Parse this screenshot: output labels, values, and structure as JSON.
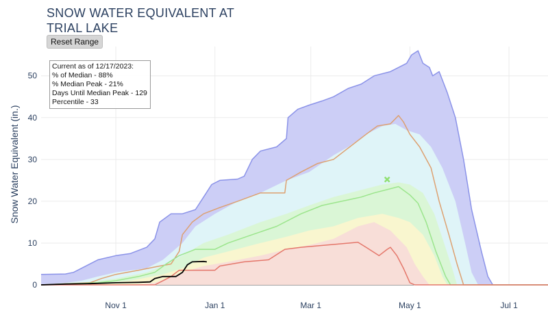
{
  "title_line1": "SNOW WATER EQUIVALENT AT",
  "title_line2": "TRIAL LAKE",
  "reset_button": "Reset Range",
  "info_box": {
    "line1": "Current as of 12/17/2023:",
    "line2": "% of Median - 88%",
    "line3": "% Median Peak - 21%",
    "line4": "Days Until Median Peak - 129",
    "line5": "Percentile - 33"
  },
  "colors": {
    "max_band": "#c9cbf6",
    "max_line": "#8a92e8",
    "p90_band": "#dff6f8",
    "p70_band": "#d9f5d4",
    "p50_band": "#fbf6cf",
    "p30_band": "#f8dcd8",
    "min_line": "#e4766a",
    "p90_line": "#dda070",
    "median_line": "#9be58c",
    "current_line": "#000000",
    "marker": "#8fe071"
  },
  "chart_data": {
    "type": "area",
    "ylabel": "Snow Water Equivalent (in.)",
    "x_units": "days since Oct 1",
    "xlim": [
      -15,
      297
    ],
    "ylim": [
      0,
      57
    ],
    "yticks": [
      0,
      10,
      20,
      30,
      40,
      50
    ],
    "xticks": [
      {
        "day": 31,
        "label": "Nov 1"
      },
      {
        "day": 92,
        "label": "Jan 1"
      },
      {
        "day": 151,
        "label": "Mar 1"
      },
      {
        "day": 212,
        "label": "May 1"
      },
      {
        "day": 273,
        "label": "Jul 1"
      }
    ],
    "grid": true,
    "bands": [
      {
        "key": "max",
        "color": "#c9cbf6",
        "points": [
          [
            -15,
            2.5
          ],
          [
            0,
            2.6
          ],
          [
            5,
            3
          ],
          [
            10,
            4
          ],
          [
            20,
            6
          ],
          [
            31,
            7
          ],
          [
            40,
            7.5
          ],
          [
            50,
            9
          ],
          [
            55,
            11
          ],
          [
            58,
            15
          ],
          [
            65,
            17
          ],
          [
            72,
            17
          ],
          [
            80,
            18
          ],
          [
            85,
            21
          ],
          [
            90,
            24
          ],
          [
            95,
            25
          ],
          [
            106,
            25.3
          ],
          [
            110,
            26
          ],
          [
            115,
            30
          ],
          [
            120,
            32
          ],
          [
            130,
            33
          ],
          [
            136,
            35
          ],
          [
            137,
            40
          ],
          [
            143,
            42
          ],
          [
            150,
            43
          ],
          [
            158,
            44
          ],
          [
            165,
            45
          ],
          [
            174,
            47
          ],
          [
            182,
            48
          ],
          [
            190,
            50
          ],
          [
            200,
            51
          ],
          [
            210,
            53
          ],
          [
            213,
            55
          ],
          [
            217,
            56
          ],
          [
            220,
            53
          ],
          [
            224,
            52
          ],
          [
            226,
            50
          ],
          [
            230,
            51
          ],
          [
            235,
            46
          ],
          [
            240,
            40
          ],
          [
            245,
            30
          ],
          [
            250,
            18
          ],
          [
            256,
            8
          ],
          [
            260,
            2
          ],
          [
            263,
            0
          ],
          [
            297,
            0
          ]
        ]
      },
      {
        "key": "p90",
        "color": "#dff6f8",
        "points": [
          [
            -15,
            0
          ],
          [
            0,
            0.5
          ],
          [
            10,
            1
          ],
          [
            20,
            2
          ],
          [
            31,
            3
          ],
          [
            50,
            4
          ],
          [
            60,
            6
          ],
          [
            72,
            10
          ],
          [
            80,
            14
          ],
          [
            92,
            17
          ],
          [
            106,
            20
          ],
          [
            120,
            22
          ],
          [
            136,
            25
          ],
          [
            150,
            27
          ],
          [
            165,
            31
          ],
          [
            174,
            33
          ],
          [
            185,
            36
          ],
          [
            195,
            38
          ],
          [
            203,
            38.5
          ],
          [
            210,
            37
          ],
          [
            218,
            36
          ],
          [
            225,
            33
          ],
          [
            232,
            28
          ],
          [
            240,
            20
          ],
          [
            246,
            10
          ],
          [
            250,
            3
          ],
          [
            254,
            0
          ],
          [
            297,
            0
          ]
        ]
      },
      {
        "key": "p70",
        "color": "#d9f5d4",
        "points": [
          [
            -15,
            0
          ],
          [
            10,
            0.5
          ],
          [
            31,
            1.5
          ],
          [
            50,
            3
          ],
          [
            60,
            4.5
          ],
          [
            72,
            7
          ],
          [
            85,
            10
          ],
          [
            100,
            12
          ],
          [
            120,
            15
          ],
          [
            136,
            17
          ],
          [
            150,
            19
          ],
          [
            165,
            21
          ],
          [
            180,
            22.5
          ],
          [
            195,
            24
          ],
          [
            205,
            24.5
          ],
          [
            212,
            24
          ],
          [
            220,
            22
          ],
          [
            227,
            17
          ],
          [
            233,
            10
          ],
          [
            238,
            4
          ],
          [
            241,
            0
          ],
          [
            297,
            0
          ]
        ]
      },
      {
        "key": "p50",
        "color": "#fbf6cf",
        "points": [
          [
            -15,
            0
          ],
          [
            20,
            0.3
          ],
          [
            40,
            1
          ],
          [
            60,
            2.5
          ],
          [
            72,
            4
          ],
          [
            85,
            6.5
          ],
          [
            100,
            8
          ],
          [
            120,
            10
          ],
          [
            136,
            11.5
          ],
          [
            150,
            13
          ],
          [
            165,
            14
          ],
          [
            180,
            16
          ],
          [
            195,
            17
          ],
          [
            205,
            16
          ],
          [
            212,
            15
          ],
          [
            220,
            12
          ],
          [
            227,
            7
          ],
          [
            232,
            2
          ],
          [
            235,
            0
          ],
          [
            297,
            0
          ]
        ]
      },
      {
        "key": "p30",
        "color": "#f8dcd8",
        "points": [
          [
            -15,
            0
          ],
          [
            40,
            0
          ],
          [
            55,
            0.5
          ],
          [
            62,
            1.5
          ],
          [
            72,
            3
          ],
          [
            85,
            4.5
          ],
          [
            100,
            5.5
          ],
          [
            120,
            7
          ],
          [
            136,
            8.5
          ],
          [
            150,
            9.5
          ],
          [
            165,
            11
          ],
          [
            180,
            14
          ],
          [
            190,
            15
          ],
          [
            200,
            13
          ],
          [
            210,
            9
          ],
          [
            215,
            5
          ],
          [
            220,
            2
          ],
          [
            224,
            0
          ],
          [
            297,
            0
          ]
        ]
      }
    ],
    "series": [
      {
        "key": "max",
        "color": "#8a92e8",
        "width": 1.5,
        "points": [
          [
            -15,
            2.5
          ],
          [
            0,
            2.6
          ],
          [
            5,
            3
          ],
          [
            10,
            4
          ],
          [
            20,
            6
          ],
          [
            31,
            7
          ],
          [
            40,
            7.5
          ],
          [
            50,
            9
          ],
          [
            55,
            11
          ],
          [
            58,
            15
          ],
          [
            65,
            17
          ],
          [
            72,
            17
          ],
          [
            80,
            18
          ],
          [
            85,
            21
          ],
          [
            90,
            24
          ],
          [
            95,
            25
          ],
          [
            106,
            25.3
          ],
          [
            110,
            26
          ],
          [
            115,
            30
          ],
          [
            120,
            32
          ],
          [
            130,
            33
          ],
          [
            136,
            35
          ],
          [
            137,
            40
          ],
          [
            143,
            42
          ],
          [
            150,
            43
          ],
          [
            158,
            44
          ],
          [
            165,
            45
          ],
          [
            174,
            47
          ],
          [
            182,
            48
          ],
          [
            190,
            50
          ],
          [
            200,
            51
          ],
          [
            210,
            53
          ],
          [
            213,
            55
          ],
          [
            217,
            56
          ],
          [
            220,
            53
          ],
          [
            224,
            52
          ],
          [
            226,
            50
          ],
          [
            230,
            51
          ],
          [
            235,
            46
          ],
          [
            240,
            40
          ],
          [
            245,
            30
          ],
          [
            250,
            18
          ],
          [
            256,
            8
          ],
          [
            260,
            2
          ],
          [
            263,
            0
          ],
          [
            297,
            0
          ]
        ]
      },
      {
        "key": "p90_line",
        "color": "#dda070",
        "width": 1.5,
        "points": [
          [
            -15,
            0
          ],
          [
            15,
            0.5
          ],
          [
            22,
            1.5
          ],
          [
            31,
            2.5
          ],
          [
            45,
            3.5
          ],
          [
            58,
            4.5
          ],
          [
            65,
            5
          ],
          [
            70,
            8
          ],
          [
            72,
            12
          ],
          [
            78,
            15
          ],
          [
            85,
            17
          ],
          [
            95,
            18.5
          ],
          [
            106,
            20
          ],
          [
            120,
            22
          ],
          [
            135,
            22
          ],
          [
            136,
            25
          ],
          [
            145,
            27
          ],
          [
            155,
            29
          ],
          [
            165,
            30
          ],
          [
            175,
            33
          ],
          [
            185,
            36
          ],
          [
            192,
            38
          ],
          [
            200,
            38.5
          ],
          [
            205,
            40.5
          ],
          [
            208,
            39
          ],
          [
            212,
            36
          ],
          [
            218,
            33
          ],
          [
            225,
            28
          ],
          [
            230,
            20
          ],
          [
            236,
            12
          ],
          [
            241,
            5
          ],
          [
            245,
            0
          ],
          [
            297,
            0
          ]
        ]
      },
      {
        "key": "median",
        "color": "#9be58c",
        "width": 1.5,
        "points": [
          [
            -15,
            0
          ],
          [
            20,
            0.5
          ],
          [
            31,
            1
          ],
          [
            45,
            2
          ],
          [
            55,
            3
          ],
          [
            62,
            5
          ],
          [
            70,
            7
          ],
          [
            80,
            8.5
          ],
          [
            92,
            8.5
          ],
          [
            100,
            10
          ],
          [
            115,
            12
          ],
          [
            130,
            14
          ],
          [
            145,
            17
          ],
          [
            158,
            19
          ],
          [
            170,
            20
          ],
          [
            182,
            21
          ],
          [
            190,
            22
          ],
          [
            200,
            23
          ],
          [
            205,
            23.5
          ],
          [
            212,
            21.5
          ],
          [
            217,
            19.5
          ],
          [
            222,
            15
          ],
          [
            228,
            8
          ],
          [
            234,
            2
          ],
          [
            237,
            0
          ],
          [
            297,
            0
          ]
        ]
      },
      {
        "key": "min",
        "color": "#e4766a",
        "width": 1.5,
        "points": [
          [
            -15,
            0
          ],
          [
            45,
            0
          ],
          [
            55,
            0
          ],
          [
            60,
            1
          ],
          [
            65,
            2
          ],
          [
            70,
            3.5
          ],
          [
            92,
            3.5
          ],
          [
            95,
            4.5
          ],
          [
            110,
            5.5
          ],
          [
            125,
            6
          ],
          [
            135,
            8.5
          ],
          [
            145,
            9
          ],
          [
            160,
            9.5
          ],
          [
            175,
            10
          ],
          [
            180,
            10.2
          ],
          [
            185,
            9
          ],
          [
            193,
            7
          ],
          [
            198,
            8.5
          ],
          [
            200,
            9
          ],
          [
            204,
            7
          ],
          [
            208,
            4
          ],
          [
            212,
            0.5
          ],
          [
            215,
            0
          ],
          [
            297,
            0
          ]
        ]
      },
      {
        "key": "current",
        "color": "#000000",
        "width": 1.8,
        "points": [
          [
            -15,
            0
          ],
          [
            0,
            0.2
          ],
          [
            15,
            0.3
          ],
          [
            31,
            0.5
          ],
          [
            45,
            0.6
          ],
          [
            52,
            0.7
          ],
          [
            55,
            1.5
          ],
          [
            60,
            2
          ],
          [
            68,
            2
          ],
          [
            72,
            3
          ],
          [
            75,
            4.8
          ],
          [
            78,
            5.5
          ],
          [
            85,
            5.6
          ],
          [
            87,
            5.5
          ]
        ]
      }
    ],
    "markers": [
      {
        "x": 198,
        "y": 25.2,
        "symbol": "x",
        "color": "#8fe071"
      }
    ]
  }
}
